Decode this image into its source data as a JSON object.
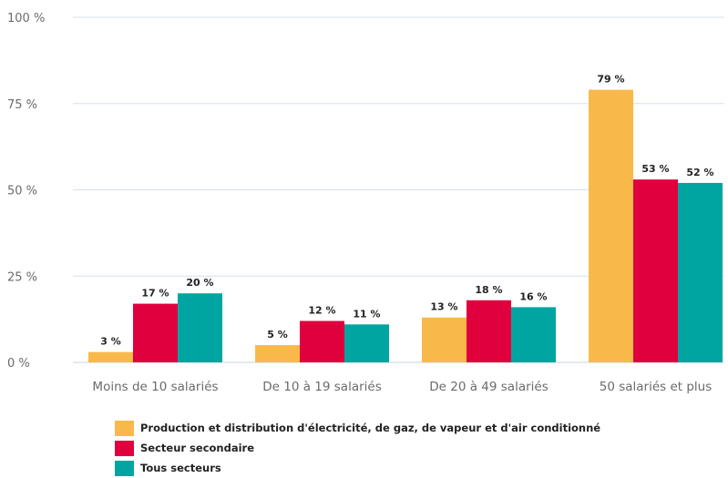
{
  "chart_data": {
    "type": "bar",
    "categories": [
      "Moins de 10 salariés",
      "De 10 à 19 salariés",
      "De 20 à 49 salariés",
      "50 salariés et plus"
    ],
    "series": [
      {
        "name": "Production et distribution d'électricité, de gaz, de vapeur et d'air conditionné",
        "color": "#f9b94a",
        "values": [
          3,
          5,
          13,
          79
        ],
        "labels": [
          "3 %",
          "5 %",
          "13 %",
          "79 %"
        ]
      },
      {
        "name": "Secteur secondaire",
        "color": "#e0003e",
        "values": [
          17,
          12,
          18,
          53
        ],
        "labels": [
          "17 %",
          "12 %",
          "18 %",
          "53 %"
        ]
      },
      {
        "name": "Tous secteurs",
        "color": "#00a5a2",
        "values": [
          20,
          11,
          16,
          52
        ],
        "labels": [
          "20 %",
          "11 %",
          "16 %",
          "52 %"
        ]
      }
    ],
    "yticks": [
      0,
      25,
      50,
      75,
      100
    ],
    "ytick_labels": [
      "0 %",
      "25 %",
      "50 %",
      "75 %",
      "100 %"
    ],
    "ylim": [
      0,
      100
    ],
    "grid": true,
    "legend_position": "bottom-left"
  }
}
